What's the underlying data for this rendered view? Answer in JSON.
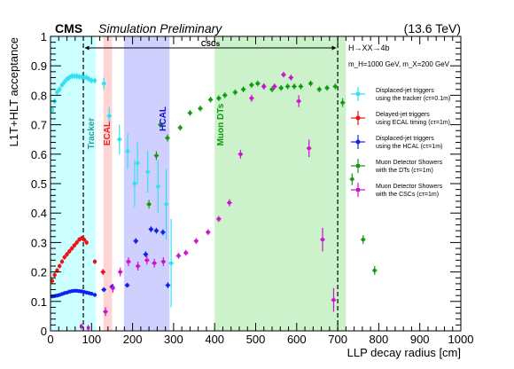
{
  "chart_data": {
    "type": "scatter",
    "header": {
      "experiment": "CMS",
      "subtitle": "Simulation Preliminary",
      "energy": "(13.6 TeV)"
    },
    "xlabel": "LLP decay radius [cm]",
    "ylabel": "L1T+HLT acceptance",
    "xlim": [
      0,
      1000
    ],
    "ylim": [
      0,
      1
    ],
    "xticks": [
      "0",
      "100",
      "200",
      "300",
      "400",
      "500",
      "600",
      "700",
      "800",
      "900",
      "1000"
    ],
    "yticks": [
      "0",
      "0.1",
      "0.2",
      "0.3",
      "0.4",
      "0.5",
      "0.6",
      "0.7",
      "0.8",
      "0.9",
      "1"
    ],
    "process": "H→XX→4b",
    "masses": "m_H=1000 GeV, m_X=200 GeV",
    "csc_label": "CSCs",
    "regions": [
      {
        "name": "Tracker",
        "x0": 0,
        "x1": 110,
        "color": "#ccffff",
        "label_color": "#339999"
      },
      {
        "name": "ECAL",
        "x0": 129,
        "x1": 150,
        "color": "#ffd4d4",
        "label_color": "#ee2222"
      },
      {
        "name": "HCAL",
        "x0": 179,
        "x1": 290,
        "color": "#d0d0ff",
        "label_color": "#1111cc"
      },
      {
        "name": "Muon DTs",
        "x0": 400,
        "x1": 720,
        "color": "#ccf2cc",
        "label_color": "#119911"
      }
    ],
    "dashed_lines": [
      80,
      700
    ],
    "series": [
      {
        "name": "Displaced-jet triggers using the tracker (cτ=0.1m)",
        "color": "#33e0f0",
        "marker": "circle",
        "points": [
          [
            4,
            0.75,
            0.01
          ],
          [
            10,
            0.78,
            0.01
          ],
          [
            16,
            0.81,
            0.01
          ],
          [
            22,
            0.82,
            0.01
          ],
          [
            28,
            0.835,
            0.01
          ],
          [
            34,
            0.845,
            0.01
          ],
          [
            40,
            0.855,
            0.01
          ],
          [
            46,
            0.86,
            0.01
          ],
          [
            52,
            0.865,
            0.01
          ],
          [
            58,
            0.865,
            0.01
          ],
          [
            64,
            0.865,
            0.01
          ],
          [
            70,
            0.863,
            0.01
          ],
          [
            76,
            0.862,
            0.01
          ],
          [
            82,
            0.86,
            0.01
          ],
          [
            88,
            0.86,
            0.01
          ],
          [
            94,
            0.855,
            0.01
          ],
          [
            100,
            0.85,
            0.01
          ],
          [
            108,
            0.85,
            0.01
          ],
          [
            130,
            0.84,
            0.02
          ],
          [
            143,
            0.73,
            0.03
          ],
          [
            168,
            0.65,
            0.05
          ],
          [
            188,
            0.61,
            0.06
          ],
          [
            205,
            0.5,
            0.08
          ],
          [
            212,
            0.57,
            0.07
          ],
          [
            237,
            0.54,
            0.07
          ],
          [
            262,
            0.49,
            0.09
          ],
          [
            282,
            0.43,
            0.12
          ],
          [
            294,
            0.23,
            0.15
          ]
        ]
      },
      {
        "name": "Delayed-jet triggers using ECAL timing (cτ=1m)",
        "color": "#ee1111",
        "marker": "circle",
        "points": [
          [
            4,
            0.17,
            0.008
          ],
          [
            10,
            0.19,
            0.008
          ],
          [
            16,
            0.205,
            0.008
          ],
          [
            22,
            0.22,
            0.008
          ],
          [
            28,
            0.235,
            0.008
          ],
          [
            34,
            0.25,
            0.008
          ],
          [
            40,
            0.26,
            0.008
          ],
          [
            46,
            0.27,
            0.008
          ],
          [
            52,
            0.28,
            0.008
          ],
          [
            58,
            0.29,
            0.008
          ],
          [
            64,
            0.3,
            0.008
          ],
          [
            70,
            0.31,
            0.008
          ],
          [
            76,
            0.315,
            0.008
          ],
          [
            82,
            0.31,
            0.008
          ],
          [
            88,
            0.3,
            0.008
          ],
          [
            108,
            0.235,
            0.008
          ],
          [
            128,
            0.2,
            0.01
          ]
        ]
      },
      {
        "name": "Displaced-jet triggers using the HCAL (cτ=1m)",
        "color": "#1122ee",
        "marker": "circle",
        "points": [
          [
            4,
            0.117,
            0.005
          ],
          [
            10,
            0.118,
            0.005
          ],
          [
            16,
            0.12,
            0.005
          ],
          [
            22,
            0.122,
            0.005
          ],
          [
            28,
            0.125,
            0.005
          ],
          [
            34,
            0.128,
            0.005
          ],
          [
            40,
            0.13,
            0.005
          ],
          [
            46,
            0.133,
            0.005
          ],
          [
            52,
            0.135,
            0.005
          ],
          [
            58,
            0.136,
            0.005
          ],
          [
            64,
            0.136,
            0.005
          ],
          [
            70,
            0.135,
            0.005
          ],
          [
            76,
            0.134,
            0.005
          ],
          [
            82,
            0.132,
            0.005
          ],
          [
            88,
            0.13,
            0.005
          ],
          [
            94,
            0.128,
            0.005
          ],
          [
            100,
            0.126,
            0.005
          ],
          [
            108,
            0.122,
            0.005
          ],
          [
            130,
            0.14,
            0.008
          ],
          [
            150,
            0.15,
            0.008
          ],
          [
            187,
            0.155,
            0.008
          ],
          [
            208,
            0.305,
            0.01
          ],
          [
            232,
            0.26,
            0.01
          ],
          [
            245,
            0.345,
            0.01
          ],
          [
            258,
            0.34,
            0.01
          ],
          [
            274,
            0.335,
            0.01
          ],
          [
            286,
            0.155,
            0.01
          ]
        ]
      },
      {
        "name": "Muon Detector Showers with the DTs (cτ=1m)",
        "color": "#119911",
        "marker": "square",
        "points": [
          [
            240,
            0.43,
            0.015
          ],
          [
            258,
            0.595,
            0.015
          ],
          [
            268,
            0.7,
            0.01
          ],
          [
            285,
            0.655,
            0.012
          ],
          [
            316,
            0.69,
            0.01
          ],
          [
            340,
            0.74,
            0.01
          ],
          [
            365,
            0.755,
            0.01
          ],
          [
            390,
            0.785,
            0.01
          ],
          [
            410,
            0.79,
            0.01
          ],
          [
            425,
            0.8,
            0.01
          ],
          [
            450,
            0.81,
            0.01
          ],
          [
            470,
            0.82,
            0.01
          ],
          [
            490,
            0.835,
            0.01
          ],
          [
            505,
            0.84,
            0.01
          ],
          [
            520,
            0.83,
            0.01
          ],
          [
            540,
            0.82,
            0.01
          ],
          [
            562,
            0.825,
            0.01
          ],
          [
            578,
            0.83,
            0.01
          ],
          [
            594,
            0.83,
            0.01
          ],
          [
            610,
            0.83,
            0.01
          ],
          [
            634,
            0.84,
            0.01
          ],
          [
            655,
            0.82,
            0.01
          ],
          [
            674,
            0.825,
            0.01
          ],
          [
            694,
            0.83,
            0.01
          ],
          [
            712,
            0.775,
            0.015
          ],
          [
            735,
            0.515,
            0.02
          ],
          [
            762,
            0.31,
            0.015
          ],
          [
            790,
            0.205,
            0.015
          ]
        ]
      },
      {
        "name": "Muon Detector Showers with the CSCs (cτ=1m)",
        "color": "#cc11cc",
        "marker": "square",
        "points": [
          [
            75,
            0.015,
            0.01
          ],
          [
            92,
            0.01,
            0.01
          ],
          [
            134,
            0.065,
            0.015
          ],
          [
            152,
            0.145,
            0.015
          ],
          [
            170,
            0.2,
            0.015
          ],
          [
            190,
            0.235,
            0.015
          ],
          [
            213,
            0.22,
            0.015
          ],
          [
            235,
            0.24,
            0.015
          ],
          [
            253,
            0.23,
            0.015
          ],
          [
            275,
            0.235,
            0.015
          ],
          [
            312,
            0.255,
            0.01
          ],
          [
            330,
            0.265,
            0.01
          ],
          [
            355,
            0.305,
            0.01
          ],
          [
            384,
            0.335,
            0.01
          ],
          [
            410,
            0.38,
            0.01
          ],
          [
            436,
            0.435,
            0.012
          ],
          [
            463,
            0.6,
            0.015
          ],
          [
            490,
            0.79,
            0.012
          ],
          [
            520,
            0.83,
            0.01
          ],
          [
            546,
            0.83,
            0.01
          ],
          [
            568,
            0.87,
            0.01
          ],
          [
            586,
            0.86,
            0.01
          ],
          [
            605,
            0.78,
            0.02
          ],
          [
            630,
            0.62,
            0.03
          ],
          [
            663,
            0.31,
            0.04
          ],
          [
            690,
            0.105,
            0.04
          ]
        ]
      }
    ]
  }
}
